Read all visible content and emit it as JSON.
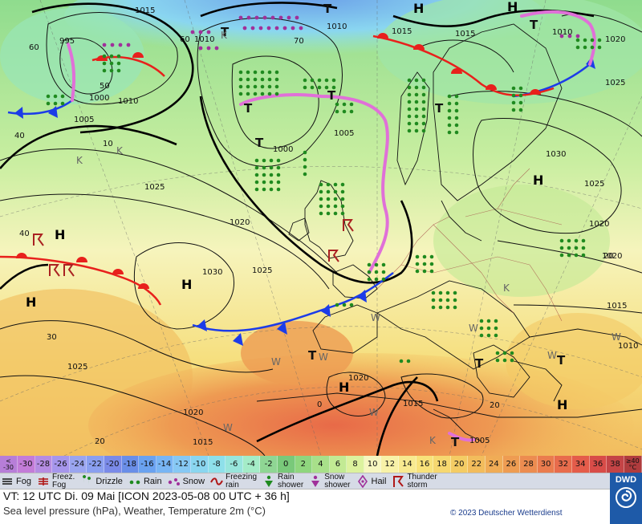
{
  "map": {
    "pressure_labels": [
      "1015",
      "995",
      "1010",
      "1000",
      "1010",
      "1005",
      "1015",
      "1020",
      "1025",
      "1010",
      "1015",
      "1010",
      "1005",
      "1000",
      "1020",
      "1030",
      "1025",
      "1030",
      "1025",
      "1020",
      "1025",
      "1020",
      "1015",
      "1010",
      "1025",
      "1020",
      "1020",
      "1015",
      "1015",
      "1005",
      "60",
      "60",
      "50",
      "70",
      "40",
      "40",
      "30",
      "20",
      "20",
      "0",
      "20",
      "10"
    ],
    "centers": [
      {
        "name": "H-atlantic-1",
        "label": "H"
      },
      {
        "name": "H-atlantic-2",
        "label": "H"
      },
      {
        "name": "H-biscay",
        "label": "H"
      },
      {
        "name": "H-scandinavia",
        "label": "H"
      },
      {
        "name": "H-north-africa",
        "label": "H"
      },
      {
        "name": "H-mediterranean",
        "label": "H"
      },
      {
        "name": "H-iceland",
        "label": "H"
      },
      {
        "name": "H-north",
        "label": "H"
      },
      {
        "name": "T-greenland",
        "label": "T"
      },
      {
        "name": "T-norwegian-sea",
        "label": "T"
      },
      {
        "name": "T-atlantic",
        "label": "T"
      },
      {
        "name": "T-north-sea",
        "label": "T"
      },
      {
        "name": "T-baltic",
        "label": "T"
      },
      {
        "name": "T-finland",
        "label": "T"
      },
      {
        "name": "T-spain",
        "label": "T"
      },
      {
        "name": "T-balkans",
        "label": "T"
      },
      {
        "name": "T-turkey",
        "label": "T"
      },
      {
        "name": "T-east",
        "label": "T"
      },
      {
        "name": "T-north-africa",
        "label": "T"
      }
    ],
    "symbol_k": "K",
    "symbol_w": "W"
  },
  "scale": {
    "first_top": "<",
    "first_bottom": "-30",
    "last_top": "≥40",
    "last_bottom": "°C",
    "values": [
      "-30",
      "-28",
      "-26",
      "-24",
      "-22",
      "-20",
      "-18",
      "-16",
      "-14",
      "-12",
      "-10",
      "-8",
      "-6",
      "-4",
      "-2",
      "0",
      "2",
      "4",
      "6",
      "8",
      "10",
      "12",
      "14",
      "16",
      "18",
      "20",
      "22",
      "24",
      "26",
      "28",
      "30",
      "32",
      "34",
      "36",
      "38"
    ],
    "colors": [
      "#c37cd8",
      "#b58ce2",
      "#a696ec",
      "#9aa5f0",
      "#8a9ff0",
      "#7a8ae8",
      "#6a8ee8",
      "#6aa2f0",
      "#78b5f4",
      "#86c8f4",
      "#8ad6f0",
      "#8ee0ea",
      "#98e6dc",
      "#a4ecc8",
      "#8fd694",
      "#79c97a",
      "#8fd67e",
      "#a8e08a",
      "#c2ea94",
      "#dcf29e",
      "#f6f6c0",
      "#f8f2a8",
      "#f8ea90",
      "#f8e27a",
      "#f6d870",
      "#f4cc64",
      "#f2bc5c",
      "#f0ac56",
      "#ee9c52",
      "#ec8c50",
      "#ea7c4e",
      "#e86c4c",
      "#e45c4a",
      "#d84c48",
      "#c44446"
    ],
    "first_color": "#b77ed8",
    "last_color": "#b03c3e"
  },
  "legend": {
    "items": [
      {
        "key": "fog",
        "label": "Fog"
      },
      {
        "key": "freez_fog",
        "label_top": "Freez.",
        "label_bottom": "Fog"
      },
      {
        "key": "drizzle",
        "label": "Drizzle"
      },
      {
        "key": "rain",
        "label": "Rain"
      },
      {
        "key": "snow",
        "label": "Snow"
      },
      {
        "key": "freezing_rain",
        "label_top": "Freezing",
        "label_bottom": "rain"
      },
      {
        "key": "rain_shower",
        "label_top": "Rain",
        "label_bottom": "shower"
      },
      {
        "key": "snow_shower",
        "label_top": "Snow",
        "label_bottom": "shower"
      },
      {
        "key": "hail",
        "label": "Hail"
      },
      {
        "key": "thunderstorm",
        "label_top": "Thunder",
        "label_bottom": "storm"
      }
    ]
  },
  "info": {
    "valid_time": "VT: 12 UTC Di.  09 Mai [ICON 2023-05-08  00 UTC + 36 h]",
    "subtitle": "Sea level pressure (hPa), Weather, Temperature 2m (°C)",
    "copyright": "© 2023 Deutscher Wetterdienst",
    "logo_text": "DWD"
  },
  "colors": {
    "warm_front": "#e8201c",
    "cold_front": "#1c3ce8",
    "occlusion": "#e070d8",
    "isobar": "#111111",
    "rain_dot": "#1f8a1f",
    "snow_star": "#a0309a"
  }
}
